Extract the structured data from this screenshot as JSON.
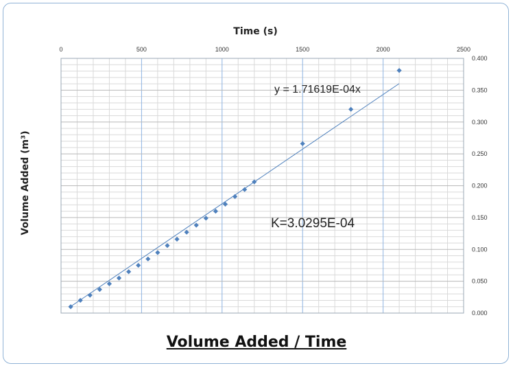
{
  "chart_data": {
    "type": "scatter",
    "title": "Volume Added / Time",
    "xlabel": "Time (s)",
    "ylabel": "Volume Added (m³)",
    "xlim": [
      0,
      2500
    ],
    "ylim": [
      0,
      0.4
    ],
    "x_ticks": [
      "0",
      "500",
      "1000",
      "1500",
      "2000",
      "2500"
    ],
    "y_ticks": [
      "0.000",
      "0.050",
      "0.100",
      "0.150",
      "0.200",
      "0.250",
      "0.300",
      "0.350",
      "0.400"
    ],
    "x_axis_position": "top",
    "y_axis_position": "right",
    "grid": true,
    "series": [
      {
        "x": [
          60,
          120,
          180,
          240,
          300,
          360,
          420,
          480,
          540,
          600,
          660,
          720,
          780,
          840,
          900,
          960,
          1020,
          1080,
          1140,
          1200,
          1500,
          1800,
          2100
        ],
        "y": [
          0.01,
          0.02,
          0.028,
          0.037,
          0.046,
          0.055,
          0.065,
          0.075,
          0.085,
          0.095,
          0.106,
          0.116,
          0.127,
          0.138,
          0.149,
          0.16,
          0.171,
          0.183,
          0.194,
          0.206,
          0.266,
          0.32,
          0.381
        ],
        "color": "#4f81bd"
      }
    ],
    "trendline": {
      "slope": 0.000171619,
      "x_range": [
        60,
        2100
      ],
      "color": "#4f81bd"
    },
    "annotations": [
      "y = 1.71619E-04x",
      "K=3.0295E-04"
    ]
  }
}
